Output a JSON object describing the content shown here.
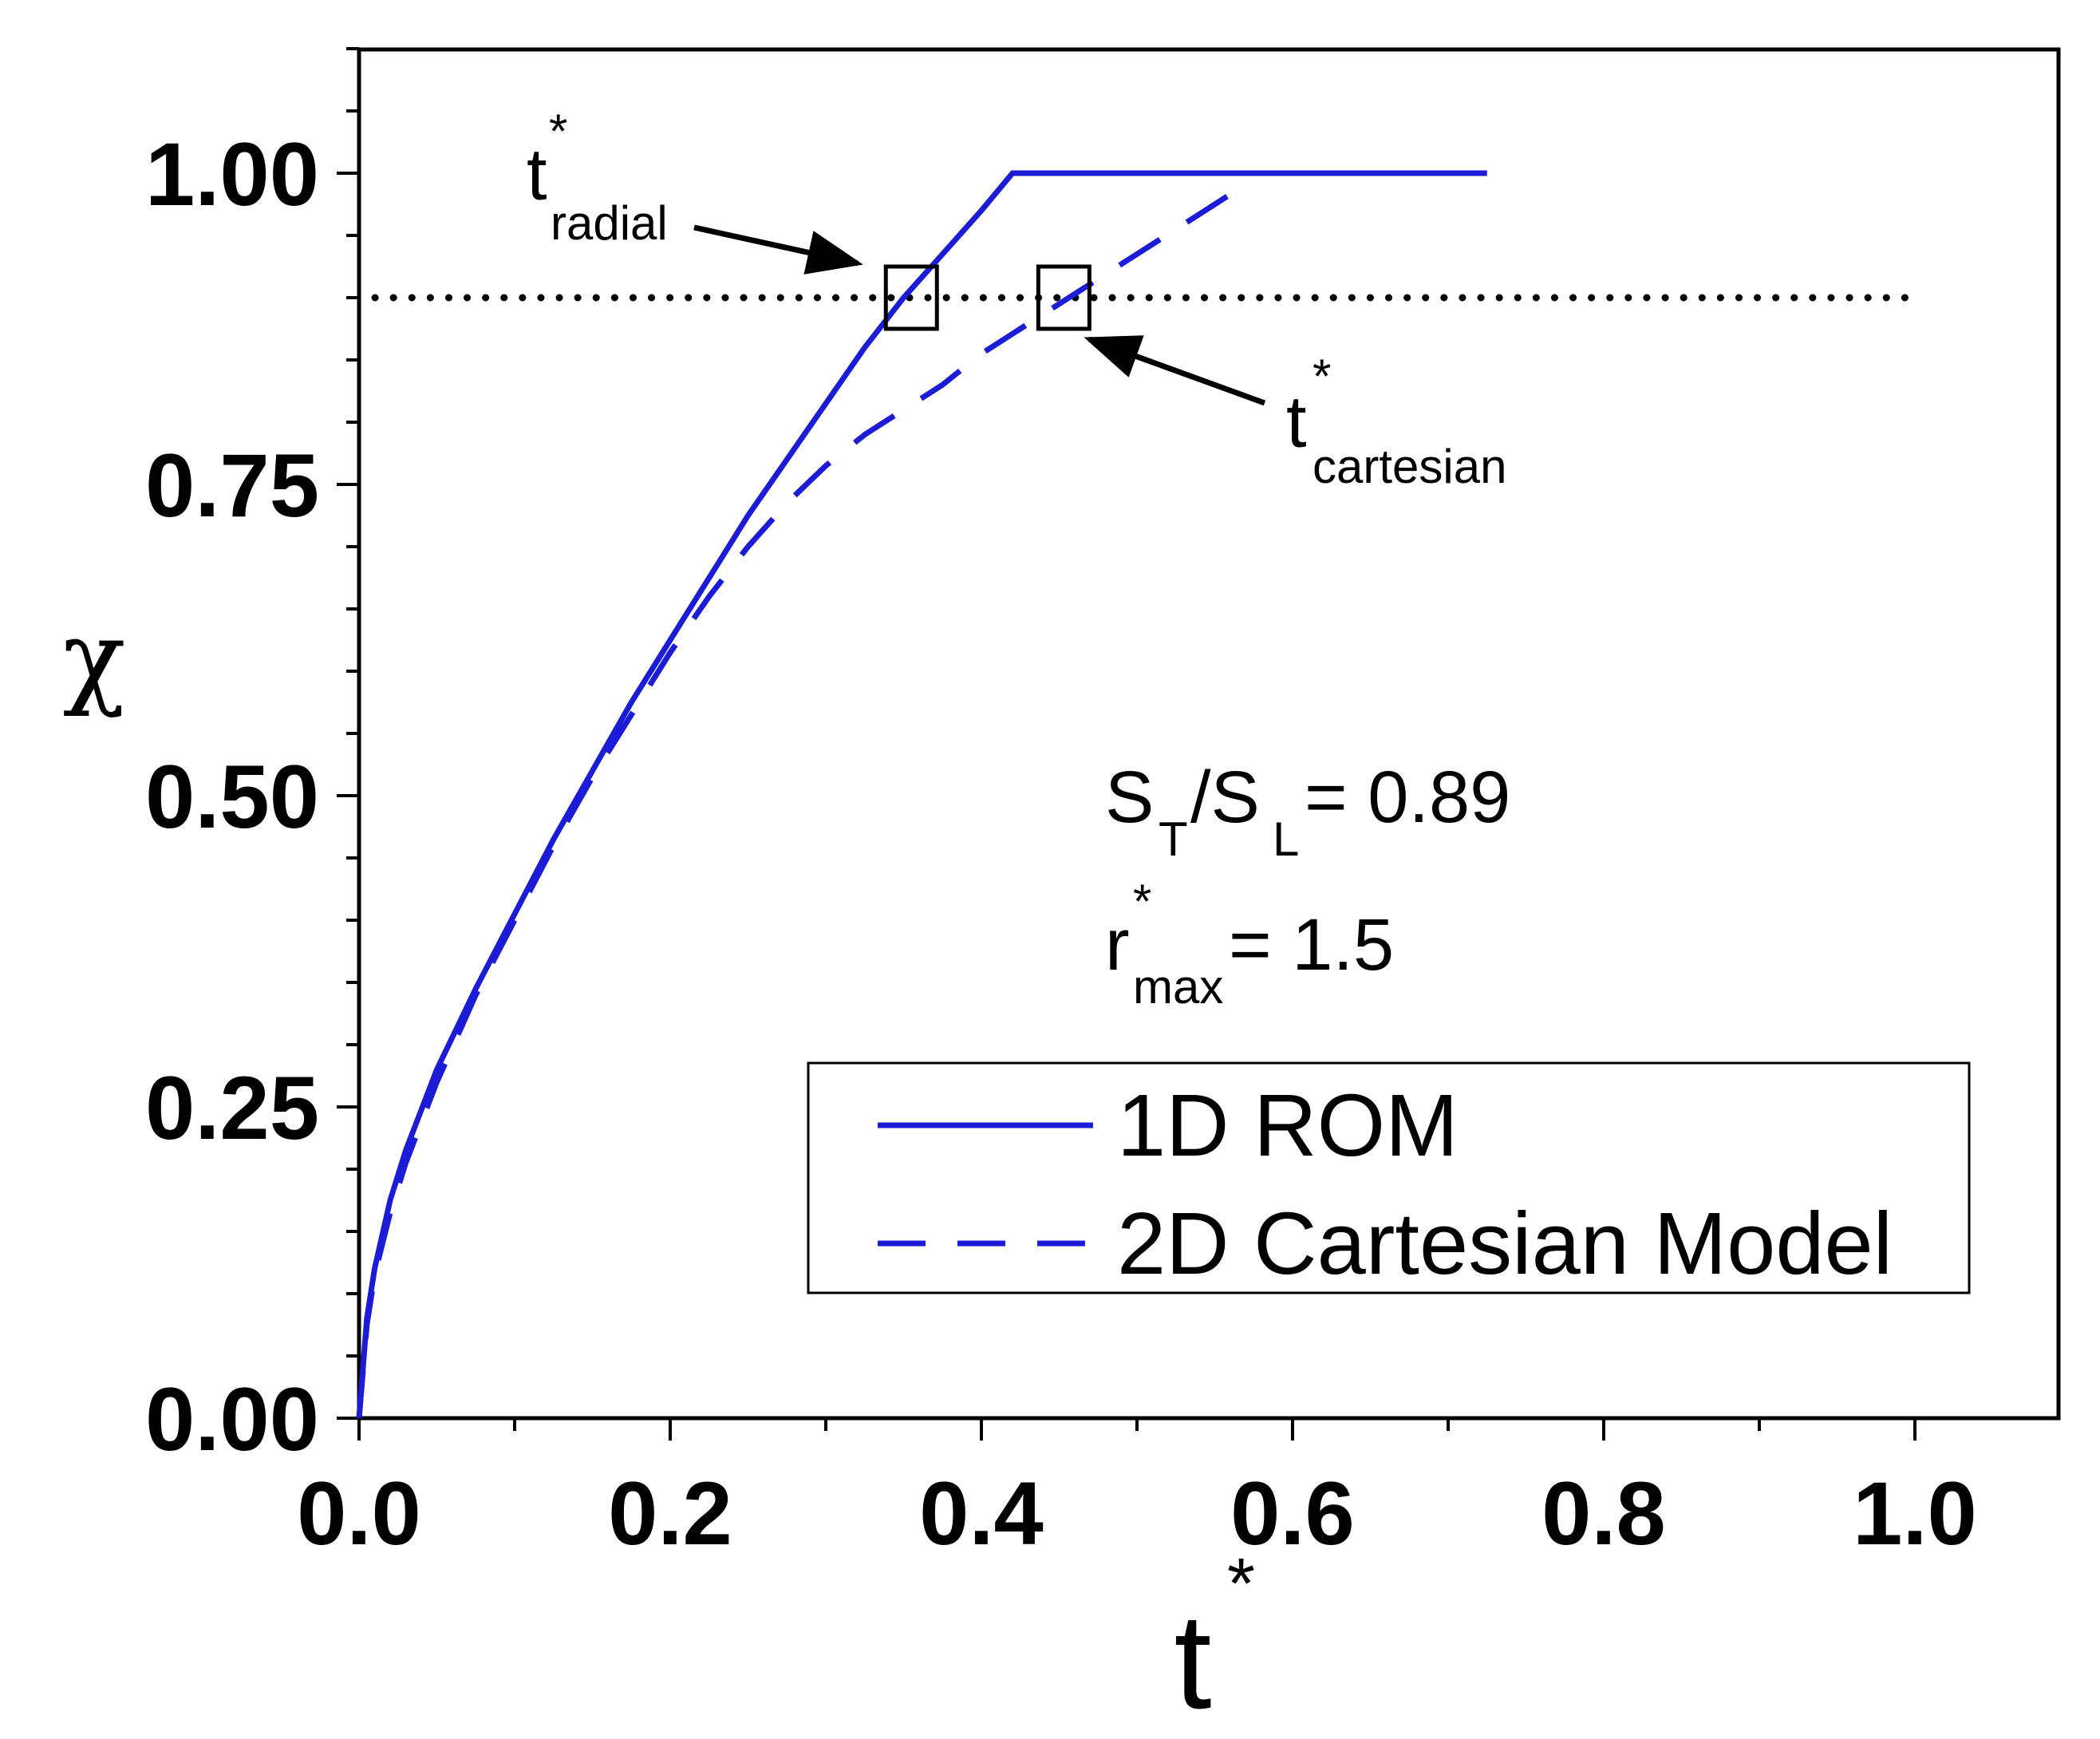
{
  "chart_data": {
    "type": "line",
    "title": "",
    "xlabel": "t",
    "xlabel_superscript": "*",
    "ylabel": "χ",
    "xlim": [
      0.0,
      1.1
    ],
    "ylim": [
      0.0,
      1.1
    ],
    "xticks": [
      {
        "value": 0.0,
        "label": "0.0"
      },
      {
        "value": 0.2,
        "label": "0.2"
      },
      {
        "value": 0.4,
        "label": "0.4"
      },
      {
        "value": 0.6,
        "label": "0.6"
      },
      {
        "value": 0.8,
        "label": "0.8"
      },
      {
        "value": 1.0,
        "label": "1.0"
      }
    ],
    "yticks": [
      {
        "value": 0.0,
        "label": "0.00"
      },
      {
        "value": 0.25,
        "label": "0.25"
      },
      {
        "value": 0.5,
        "label": "0.50"
      },
      {
        "value": 0.75,
        "label": "0.75"
      },
      {
        "value": 1.0,
        "label": "1.00"
      }
    ],
    "grid": false,
    "series": [
      {
        "name": "1D ROM",
        "style": "solid",
        "color": "#1c1cd6",
        "x": [
          0.0,
          0.005,
          0.01,
          0.02,
          0.03,
          0.05,
          0.075,
          0.1,
          0.125,
          0.15,
          0.175,
          0.2,
          0.225,
          0.25,
          0.275,
          0.3,
          0.325,
          0.35,
          0.375,
          0.4,
          0.42,
          0.5,
          0.6,
          0.725
        ],
        "y": [
          0.0,
          0.08,
          0.12,
          0.175,
          0.215,
          0.28,
          0.345,
          0.405,
          0.465,
          0.52,
          0.575,
          0.625,
          0.675,
          0.725,
          0.77,
          0.815,
          0.86,
          0.9,
          0.935,
          0.97,
          1.0,
          1.0,
          1.0,
          1.0
        ]
      },
      {
        "name": "2D Cartesian Model",
        "style": "dashed",
        "color": "#1c1cd6",
        "x": [
          0.0,
          0.005,
          0.01,
          0.02,
          0.03,
          0.05,
          0.075,
          0.1,
          0.125,
          0.15,
          0.175,
          0.2,
          0.225,
          0.25,
          0.275,
          0.3,
          0.325,
          0.35,
          0.375,
          0.4,
          0.425,
          0.45,
          0.475,
          0.5,
          0.525,
          0.55,
          0.575
        ],
        "y": [
          0.0,
          0.075,
          0.115,
          0.165,
          0.205,
          0.27,
          0.34,
          0.4,
          0.46,
          0.515,
          0.565,
          0.615,
          0.66,
          0.7,
          0.735,
          0.765,
          0.79,
          0.81,
          0.83,
          0.855,
          0.875,
          0.895,
          0.915,
          0.935,
          0.955,
          0.975,
          0.995
        ]
      }
    ],
    "reference_line": {
      "y": 0.9,
      "style": "dotted",
      "x_range": [
        0.0,
        1.0
      ]
    },
    "markers": [
      {
        "name": "t*radial",
        "x": 0.355,
        "y": 0.9
      },
      {
        "name": "t*cartesian",
        "x": 0.453,
        "y": 0.9
      }
    ],
    "annotations": {
      "radial": {
        "main": "t",
        "sup": "*",
        "sub": "radial"
      },
      "cartesian": {
        "main": "t",
        "sup": "*",
        "sub": "cartesian"
      },
      "ratio": {
        "s1": "S",
        "s1_sub": "T",
        "slash": "/S",
        "s2_sub": "L",
        "value": "= 0.89"
      },
      "rmax": {
        "main": "r",
        "sup": "*",
        "sub": "max",
        "value": "= 1.5"
      }
    },
    "legend": {
      "position": "bottom-right",
      "entries": [
        "1D ROM",
        "2D Cartesian Model"
      ]
    }
  }
}
